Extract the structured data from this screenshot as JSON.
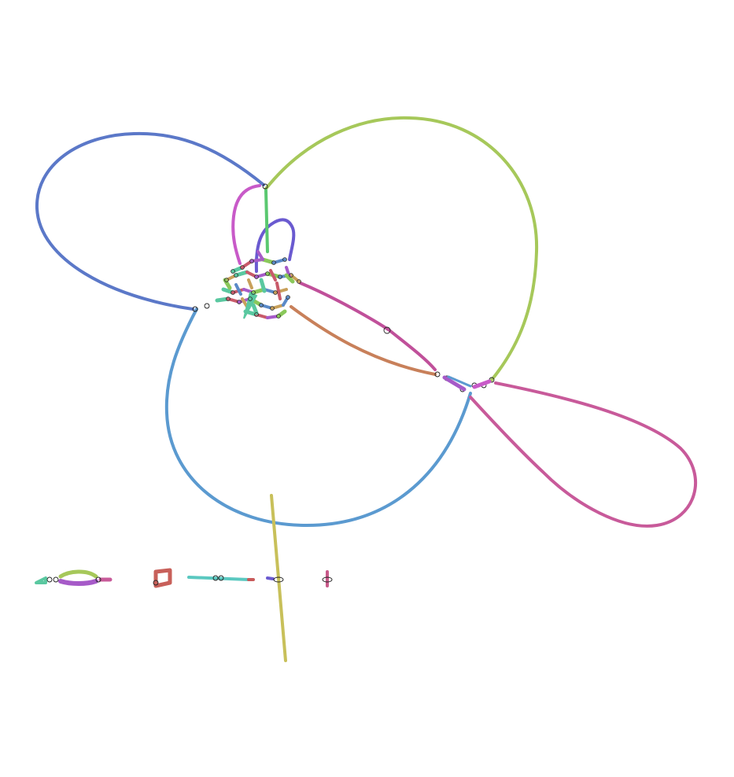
{
  "graph": {
    "background": "#ffffff",
    "node_outline_color": "#222222",
    "segments": [
      {
        "id": "loop-upper-left",
        "color": "#5b78c8"
      },
      {
        "id": "loop-upper-right",
        "color": "#a6c85a"
      },
      {
        "id": "loop-bottom",
        "color": "#5b9ad0"
      },
      {
        "id": "loop-right",
        "color": "#c85a9a"
      },
      {
        "id": "connector-orange",
        "color": "#c8805a"
      },
      {
        "id": "connector-magenta",
        "color": "#c0509a"
      },
      {
        "id": "hairpin-pink",
        "color": "#c85ac8"
      },
      {
        "id": "hairpin-violet",
        "color": "#6a5ad0"
      },
      {
        "id": "stem-green",
        "color": "#5ac870"
      },
      {
        "id": "isolated-long-segment",
        "color": "#c8c05a"
      }
    ],
    "tangle_colors": [
      "#5ac8a0",
      "#c85a6a",
      "#a65ac8",
      "#8ac85a",
      "#5a8ac8",
      "#c8a05a"
    ],
    "small_components": [
      {
        "id": "component-1",
        "colors": [
          "#5ac8a0",
          "#a6c85a",
          "#a65ac8",
          "#c85a9a"
        ]
      },
      {
        "id": "component-2",
        "colors": [
          "#c8605a"
        ]
      },
      {
        "id": "component-3",
        "colors": [
          "#5ac8c0",
          "#c85a5a"
        ]
      },
      {
        "id": "component-4",
        "colors": [
          "#6a5ad0"
        ]
      },
      {
        "id": "component-5",
        "colors": [
          "#c85a8a"
        ]
      }
    ]
  }
}
